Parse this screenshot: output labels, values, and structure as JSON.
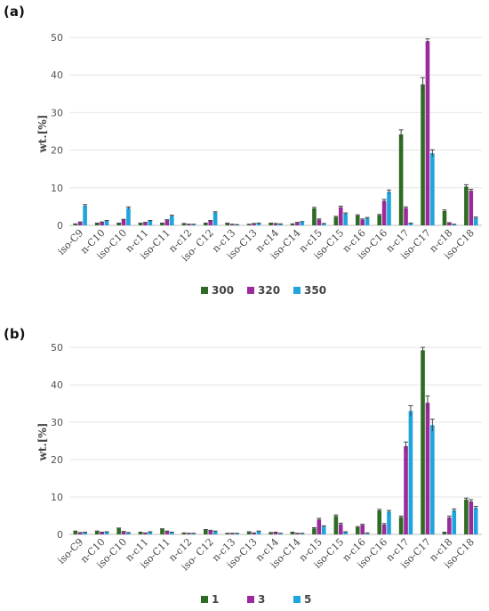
{
  "chart_data": [
    {
      "type": "bar",
      "panel_label": "(a)",
      "ylabel": "wt.[%]",
      "ylim": [
        0,
        50
      ],
      "yticks": [
        0,
        10,
        20,
        30,
        40,
        50
      ],
      "categories": [
        "iso-C9",
        "n-C10",
        "iso-C10",
        "n-c11",
        "iso-C11",
        "n-c12",
        "iso- C12",
        "n-c13",
        "iso-C13",
        "n-c14",
        "iso-C14",
        "n-c15",
        "iso-C15",
        "n-c16",
        "iso-C16",
        "n-c17",
        "iso-C17",
        "n-c18",
        "iso-C18"
      ],
      "series": [
        {
          "name": "300",
          "color": "#2e6b24",
          "values": [
            0.3,
            0.5,
            0.5,
            0.5,
            0.5,
            0.4,
            0.5,
            0.5,
            0.2,
            0.5,
            0.3,
            4.5,
            2.2,
            2.6,
            2.7,
            24.2,
            37.5,
            3.8,
            10.3
          ],
          "errors": [
            0.1,
            0.1,
            0.1,
            0.1,
            0.1,
            0.1,
            0.1,
            0.1,
            0.1,
            0.1,
            0.1,
            0.3,
            0.2,
            0.2,
            0.2,
            1.2,
            1.8,
            0.3,
            0.5
          ]
        },
        {
          "name": "320",
          "color": "#9b2a9b",
          "values": [
            0.8,
            0.8,
            1.5,
            0.7,
            1.4,
            0.2,
            1.2,
            0.2,
            0.4,
            0.4,
            0.7,
            1.5,
            4.8,
            1.5,
            6.5,
            4.6,
            49.0,
            0.6,
            9.2
          ],
          "errors": [
            0.1,
            0.1,
            0.1,
            0.1,
            0.1,
            0.1,
            0.1,
            0.1,
            0.1,
            0.1,
            0.1,
            0.2,
            0.3,
            0.2,
            0.4,
            0.3,
            0.6,
            0.1,
            0.4
          ]
        },
        {
          "name": "350",
          "color": "#1ea5dd",
          "values": [
            5.2,
            1.2,
            4.6,
            1.2,
            2.5,
            0.2,
            3.4,
            0.1,
            0.5,
            0.3,
            0.9,
            0.4,
            3.1,
            1.9,
            8.9,
            0.5,
            19.2,
            0.2,
            2.0
          ],
          "errors": [
            0.3,
            0.1,
            0.3,
            0.1,
            0.2,
            0.1,
            0.2,
            0.1,
            0.1,
            0.1,
            0.1,
            0.1,
            0.2,
            0.2,
            0.5,
            0.1,
            0.9,
            0.1,
            0.2
          ]
        }
      ],
      "legend_position": "bottom"
    },
    {
      "type": "bar",
      "panel_label": "(b)",
      "ylabel": "wt.[%]",
      "ylim": [
        0,
        50
      ],
      "yticks": [
        0,
        10,
        20,
        30,
        40,
        50
      ],
      "categories": [
        "iso-C9",
        "n-C10",
        "iso-C10",
        "n-c11",
        "iso-C11",
        "n-c12",
        "iso- C12",
        "n-c13",
        "iso-C13",
        "n-c14",
        "iso-C14",
        "n-c15",
        "iso-C15",
        "n-c16",
        "iso-C16",
        "n-c17",
        "iso-C17",
        "n-c18",
        "iso-C18"
      ],
      "series": [
        {
          "name": "1",
          "color": "#2e6b24",
          "values": [
            0.8,
            0.8,
            1.6,
            0.5,
            1.4,
            0.3,
            1.2,
            0.2,
            0.6,
            0.4,
            0.5,
            1.6,
            4.9,
            1.9,
            6.4,
            4.6,
            49.2,
            0.5,
            9.3
          ],
          "errors": [
            0.1,
            0.1,
            0.1,
            0.1,
            0.1,
            0.1,
            0.1,
            0.1,
            0.1,
            0.1,
            0.1,
            0.2,
            0.3,
            0.2,
            0.3,
            0.3,
            0.8,
            0.1,
            0.4
          ]
        },
        {
          "name": "3",
          "color": "#9b2a9b",
          "values": [
            0.4,
            0.5,
            0.7,
            0.3,
            0.8,
            0.2,
            1.0,
            0.2,
            0.3,
            0.5,
            0.2,
            4.0,
            2.7,
            2.5,
            2.6,
            23.6,
            35.2,
            4.5,
            8.8
          ],
          "errors": [
            0.1,
            0.1,
            0.1,
            0.1,
            0.1,
            0.1,
            0.1,
            0.1,
            0.1,
            0.1,
            0.1,
            0.3,
            0.3,
            0.2,
            0.3,
            1.1,
            1.8,
            0.4,
            0.5
          ]
        },
        {
          "name": "5",
          "color": "#1ea5dd",
          "values": [
            0.5,
            0.6,
            0.4,
            0.6,
            0.5,
            0.2,
            0.8,
            0.2,
            0.8,
            0.2,
            0.2,
            2.1,
            0.6,
            0.3,
            6.1,
            33.0,
            29.2,
            6.4,
            7.1
          ],
          "errors": [
            0.1,
            0.1,
            0.1,
            0.1,
            0.1,
            0.1,
            0.1,
            0.1,
            0.1,
            0.1,
            0.1,
            0.2,
            0.1,
            0.1,
            0.3,
            1.4,
            1.6,
            0.4,
            0.4
          ]
        }
      ],
      "legend_position": "bottom"
    }
  ]
}
